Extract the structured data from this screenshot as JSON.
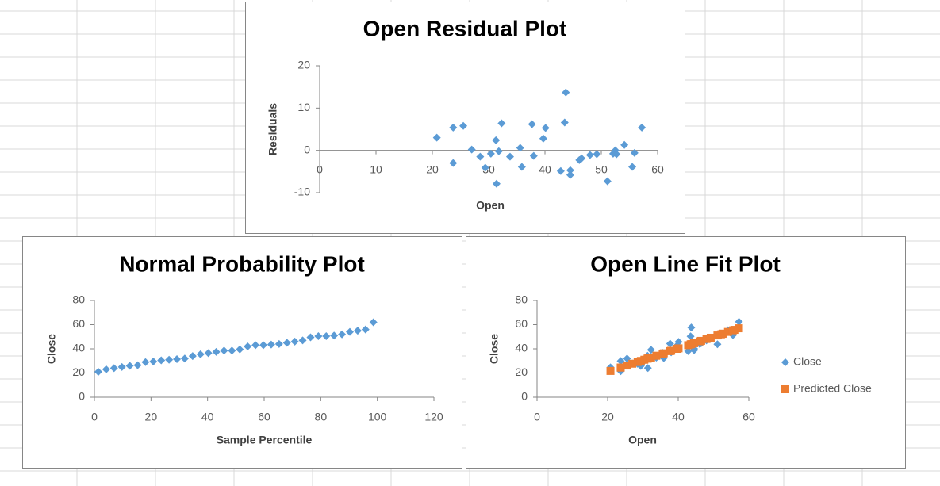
{
  "chart_data": [
    {
      "type": "scatter",
      "title": "Open  Residual Plot",
      "x_label": "Open",
      "y_label": "Residuals",
      "xlim": [
        0,
        60
      ],
      "xticks": [
        0,
        10,
        20,
        30,
        40,
        50,
        60
      ],
      "ylim": [
        -10,
        20
      ],
      "yticks": [
        -10,
        0,
        10,
        20
      ],
      "grid": false,
      "series": [
        {
          "color": "#5b9bd5",
          "marker": "diamond",
          "x": [
            20.8,
            23.7,
            23.7,
            25.5,
            27.0,
            28.5,
            29.4,
            30.4,
            31.3,
            31.4,
            31.8,
            32.3,
            33.8,
            35.6,
            35.9,
            37.7,
            38.0,
            39.7,
            40.1,
            42.8,
            43.5,
            43.7,
            44.5,
            44.5,
            46.1,
            46.5,
            48.0,
            49.2,
            51.1,
            52.1,
            52.5,
            52.7,
            54.1,
            55.5,
            55.9,
            57.2
          ],
          "values": [
            3.0,
            5.4,
            -3.0,
            5.8,
            0.2,
            -1.5,
            -4.1,
            -0.8,
            2.4,
            -7.9,
            -0.2,
            6.4,
            -1.5,
            0.6,
            -3.9,
            6.2,
            -1.3,
            2.8,
            5.3,
            -4.9,
            6.6,
            13.7,
            -4.7,
            -5.8,
            -2.3,
            -1.9,
            -1.1,
            -0.9,
            -7.3,
            -0.8,
            0,
            -0.9,
            1.3,
            -3.9,
            -0.6,
            5.4
          ]
        }
      ]
    },
    {
      "type": "scatter",
      "title": "Normal Probability Plot",
      "x_label": "Sample Percentile",
      "y_label": "Close",
      "xlim": [
        0,
        120
      ],
      "xticks": [
        0,
        20,
        40,
        60,
        80,
        100,
        120
      ],
      "ylim": [
        0,
        80
      ],
      "yticks": [
        0,
        20,
        40,
        60,
        80
      ],
      "grid": false,
      "series": [
        {
          "color": "#5b9bd5",
          "marker": "diamond",
          "x": [
            1.39,
            4.17,
            6.94,
            9.72,
            12.5,
            15.28,
            18.06,
            20.83,
            23.61,
            26.39,
            29.17,
            31.94,
            34.72,
            37.5,
            40.28,
            43.06,
            45.83,
            48.61,
            51.39,
            54.17,
            56.94,
            59.72,
            62.5,
            65.28,
            68.06,
            70.83,
            73.61,
            76.39,
            79.17,
            81.94,
            84.72,
            87.5,
            90.28,
            93.06,
            95.83,
            98.61
          ],
          "values": [
            21,
            23,
            24,
            25,
            26,
            26.5,
            29,
            29.5,
            30.5,
            31,
            31.5,
            32,
            34,
            35.5,
            36.5,
            37.5,
            38.5,
            38.5,
            39.5,
            42,
            43,
            43,
            43.5,
            44,
            45,
            46,
            47,
            49.5,
            50.5,
            50.5,
            51,
            52,
            54,
            55,
            56,
            62
          ]
        }
      ]
    },
    {
      "type": "scatter",
      "title": "Open Line Fit  Plot",
      "x_label": "Open",
      "y_label": "Close",
      "xlim": [
        0,
        60
      ],
      "xticks": [
        0,
        20,
        40,
        60
      ],
      "ylim": [
        0,
        80
      ],
      "yticks": [
        0,
        20,
        40,
        60,
        80
      ],
      "grid": false,
      "legend": "right",
      "series": [
        {
          "name": "Close",
          "color": "#5b9bd5",
          "marker": "diamond",
          "x": [
            20.8,
            23.7,
            23.7,
            25.5,
            27.0,
            28.5,
            29.4,
            30.4,
            31.3,
            31.4,
            31.8,
            32.3,
            33.8,
            35.6,
            35.9,
            37.7,
            38.0,
            39.7,
            40.1,
            42.8,
            43.5,
            43.7,
            44.5,
            44.5,
            46.1,
            46.5,
            48.0,
            49.2,
            51.1,
            52.1,
            52.5,
            52.7,
            54.1,
            55.5,
            55.9,
            57.2
          ],
          "values": [
            24.7,
            29.9,
            21.5,
            32.0,
            27.9,
            27.6,
            25.9,
            30.2,
            34.3,
            24.1,
            32.1,
            39.2,
            32.8,
            36.6,
            32.4,
            44.3,
            37.1,
            42.8,
            45.7,
            38.1,
            50.3,
            57.6,
            40.0,
            38.9,
            43.9,
            44.7,
            47.0,
            48.3,
            43.8,
            51.2,
            52.4,
            51.7,
            55.3,
            51.4,
            55.1,
            62.4
          ]
        },
        {
          "name": "Predicted Close",
          "color": "#ed7d31",
          "marker": "square",
          "x": [
            20.8,
            23.7,
            23.7,
            25.5,
            27.0,
            28.5,
            29.4,
            30.4,
            31.3,
            31.4,
            31.8,
            32.3,
            33.8,
            35.6,
            35.9,
            37.7,
            38.0,
            39.7,
            40.1,
            42.8,
            43.5,
            43.7,
            44.5,
            44.5,
            46.1,
            46.5,
            48.0,
            49.2,
            51.1,
            52.1,
            52.5,
            52.7,
            54.1,
            55.5,
            55.9,
            57.2
          ],
          "values": [
            21.7,
            24.5,
            24.5,
            26.2,
            27.7,
            29.1,
            30.0,
            31.0,
            31.9,
            32.0,
            32.3,
            32.8,
            34.3,
            36.0,
            36.3,
            38.1,
            38.4,
            40.0,
            40.4,
            43.0,
            43.7,
            43.9,
            44.7,
            44.7,
            46.2,
            46.6,
            48.1,
            49.2,
            51.1,
            52.0,
            52.4,
            52.6,
            54.0,
            55.3,
            55.7,
            57.0
          ]
        }
      ]
    }
  ]
}
